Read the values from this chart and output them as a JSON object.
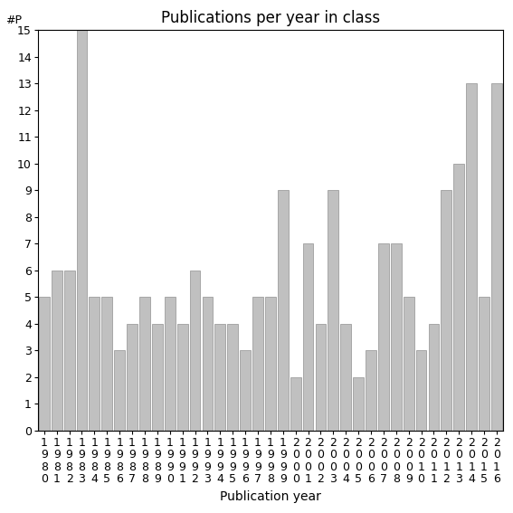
{
  "title": "Publications per year in class",
  "xlabel": "Publication year",
  "ylabel": "#P",
  "years": [
    1980,
    1981,
    1982,
    1983,
    1984,
    1985,
    1986,
    1987,
    1988,
    1989,
    1990,
    1991,
    1992,
    1993,
    1994,
    1995,
    1996,
    1997,
    1998,
    1999,
    2000,
    2001,
    2002,
    2003,
    2004,
    2005,
    2006,
    2007,
    2008,
    2009,
    2010,
    2011,
    2012,
    2013,
    2014,
    2015,
    2016
  ],
  "values": [
    5,
    6,
    6,
    15,
    5,
    5,
    3,
    4,
    5,
    4,
    5,
    4,
    6,
    5,
    4,
    4,
    3,
    5,
    5,
    9,
    2,
    7,
    4,
    9,
    4,
    2,
    3,
    7,
    7,
    5,
    3,
    4,
    9,
    10,
    13,
    5,
    13
  ],
  "bar_color": "#c0c0c0",
  "bar_edge_color": "#909090",
  "ylim": [
    0,
    15
  ],
  "yticks": [
    0,
    1,
    2,
    3,
    4,
    5,
    6,
    7,
    8,
    9,
    10,
    11,
    12,
    13,
    14,
    15
  ],
  "title_fontsize": 12,
  "label_fontsize": 10,
  "tick_fontsize": 9
}
